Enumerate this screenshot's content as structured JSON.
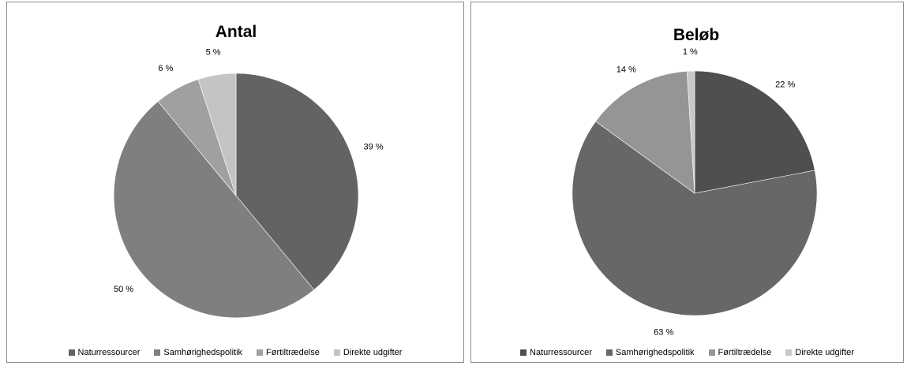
{
  "chart_data": [
    {
      "type": "pie",
      "title": "Antal",
      "categories": [
        "Naturressourcer",
        "Samhørighedspolitik",
        "Førtiltrædelse",
        "Direkte udgifter"
      ],
      "values": [
        39,
        50,
        6,
        5
      ],
      "labels": [
        "39 %",
        "50 %",
        "6 %",
        "5 %"
      ],
      "colors": [
        "#636363",
        "#7f7f7f",
        "#a0a0a0",
        "#c4c4c4"
      ],
      "legend_position": "bottom"
    },
    {
      "type": "pie",
      "title": "Beløb",
      "categories": [
        "Naturressourcer",
        "Samhørighedspolitik",
        "Førtiltrædelse",
        "Direkte udgifter"
      ],
      "values": [
        22,
        63,
        14,
        1
      ],
      "labels": [
        "22 %",
        "63 %",
        "14 %",
        "1 %"
      ],
      "colors": [
        "#4f4f4f",
        "#676767",
        "#959595",
        "#c8c8c8"
      ],
      "legend_position": "bottom"
    }
  ]
}
